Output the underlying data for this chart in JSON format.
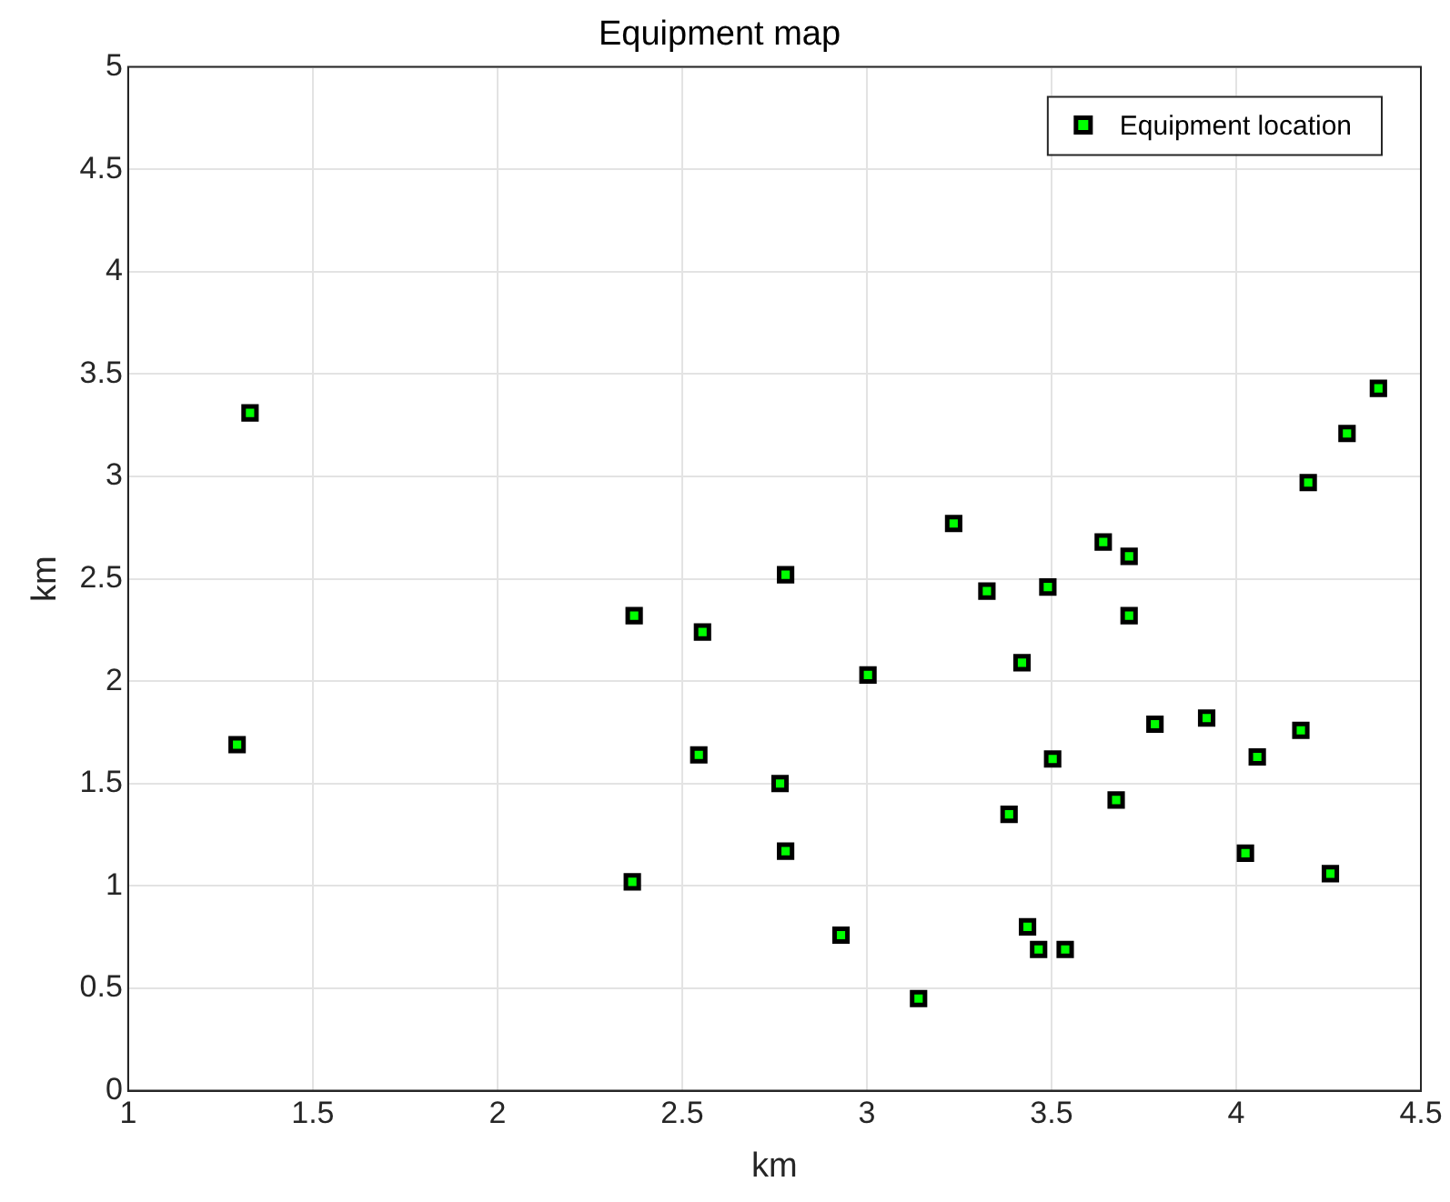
{
  "chart_data": {
    "type": "scatter",
    "title": "Equipment map",
    "xlabel": "km",
    "ylabel": "km",
    "xlim": [
      1,
      4.5
    ],
    "xticks": [
      1,
      1.5,
      2,
      2.5,
      3,
      3.5,
      4,
      4.5
    ],
    "ylim": [
      0,
      5
    ],
    "yticks": [
      0,
      0.5,
      1,
      1.5,
      2,
      2.5,
      3,
      3.5,
      4,
      4.5,
      5
    ],
    "grid": true,
    "legend": "top right",
    "marker": "square",
    "series": [
      {
        "name": "Equipment location",
        "color": "#00ff00",
        "x": [
          1.33,
          1.295,
          2.37,
          2.555,
          2.78,
          2.545,
          2.765,
          2.78,
          2.365,
          2.93,
          4.385,
          4.3,
          4.195,
          3.235,
          3.64,
          3.71,
          3.325,
          3.49,
          3.71,
          3.42,
          3.003,
          3.78,
          3.92,
          4.175,
          4.057,
          3.503,
          3.675,
          3.385,
          4.025,
          4.255,
          3.435,
          3.465,
          3.537,
          3.14
        ],
        "values": [
          3.31,
          1.69,
          2.32,
          2.24,
          2.52,
          1.64,
          1.5,
          1.17,
          1.02,
          0.76,
          3.43,
          3.21,
          2.97,
          2.77,
          2.68,
          2.61,
          2.44,
          2.46,
          2.32,
          2.09,
          2.03,
          1.79,
          1.82,
          1.76,
          1.63,
          1.62,
          1.42,
          1.35,
          1.16,
          1.06,
          0.8,
          0.69,
          0.69,
          0.45
        ]
      }
    ]
  }
}
